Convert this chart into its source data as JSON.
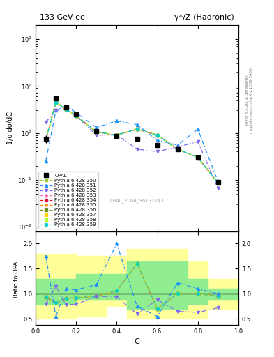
{
  "title_left": "133 GeV ee",
  "title_right": "γ*/Z (Hadronic)",
  "ylabel_main": "1/σ dσ/dC",
  "ylabel_ratio": "Ratio to OPAL",
  "xlabel": "C",
  "watermark": "OPAL_2004_S6132243",
  "right_label": "Rivet 3.1.10, ≥ 3M events",
  "right_label2": "mcplots.cern.ch [arXiv:1306.3436]",
  "opal_x": [
    0.05,
    0.1,
    0.15,
    0.2,
    0.3,
    0.4,
    0.5,
    0.6,
    0.7,
    0.8,
    0.9
  ],
  "opal_y": [
    0.75,
    5.5,
    3.5,
    2.5,
    1.1,
    0.85,
    0.75,
    0.55,
    0.45,
    0.3,
    0.09
  ],
  "opal_yerr": [
    0.15,
    0.5,
    0.3,
    0.2,
    0.1,
    0.08,
    0.07,
    0.05,
    0.05,
    0.03,
    0.01
  ],
  "mc_x": [
    0.05,
    0.1,
    0.15,
    0.2,
    0.3,
    0.4,
    0.5,
    0.6,
    0.7,
    0.8,
    0.9
  ],
  "p350_y": [
    0.7,
    4.5,
    3.2,
    2.3,
    1.05,
    0.9,
    1.2,
    0.9,
    0.45,
    0.3,
    0.085
  ],
  "p351_y": [
    0.25,
    3.0,
    3.8,
    2.7,
    1.3,
    1.8,
    1.5,
    0.7,
    0.55,
    1.2,
    0.09
  ],
  "p352_y": [
    1.7,
    3.0,
    3.2,
    2.3,
    0.9,
    0.9,
    0.45,
    0.4,
    0.5,
    0.65,
    0.065
  ],
  "p353_y": [
    0.7,
    4.5,
    3.2,
    2.3,
    1.05,
    0.9,
    1.2,
    0.9,
    0.45,
    0.3,
    0.085
  ],
  "p354_y": [
    0.7,
    4.5,
    3.2,
    2.3,
    1.05,
    0.9,
    1.2,
    0.9,
    0.45,
    0.3,
    0.085
  ],
  "p355_y": [
    0.7,
    4.5,
    3.2,
    2.3,
    1.05,
    0.9,
    1.2,
    0.9,
    0.45,
    0.3,
    0.085
  ],
  "p356_y": [
    0.7,
    4.5,
    3.2,
    2.3,
    1.05,
    0.9,
    1.2,
    0.9,
    0.45,
    0.3,
    0.085
  ],
  "p357_y": [
    0.7,
    4.5,
    3.2,
    2.3,
    1.05,
    0.9,
    1.2,
    0.9,
    0.45,
    0.3,
    0.085
  ],
  "p358_y": [
    0.7,
    4.5,
    3.2,
    2.3,
    1.05,
    0.9,
    1.2,
    0.9,
    0.45,
    0.3,
    0.085
  ],
  "p359_y": [
    0.7,
    4.5,
    3.2,
    2.3,
    1.05,
    0.9,
    1.2,
    0.9,
    0.45,
    0.3,
    0.085
  ],
  "band_x": [
    0.0,
    0.1,
    0.2,
    0.35,
    0.45,
    0.55,
    0.75,
    0.85,
    1.0
  ],
  "band_green_lo": [
    0.8,
    0.8,
    0.9,
    0.9,
    0.7,
    0.7,
    0.8,
    0.9,
    0.9
  ],
  "band_green_hi": [
    1.3,
    1.3,
    1.4,
    1.4,
    1.65,
    1.65,
    1.3,
    1.1,
    1.1
  ],
  "band_yellow_lo": [
    0.5,
    0.5,
    0.55,
    0.75,
    0.5,
    0.5,
    0.5,
    0.7,
    0.7
  ],
  "band_yellow_hi": [
    1.8,
    1.8,
    1.75,
    1.75,
    1.9,
    1.9,
    1.65,
    1.3,
    1.3
  ],
  "ratio_x": [
    0.05,
    0.1,
    0.15,
    0.2,
    0.3,
    0.4,
    0.5,
    0.6,
    0.7,
    0.8,
    0.9
  ],
  "ratio_350": [
    0.93,
    0.82,
    0.91,
    0.92,
    0.95,
    1.06,
    1.6,
    0.7,
    1.0,
    1.0,
    0.95
  ],
  "ratio_351": [
    1.75,
    0.55,
    1.1,
    1.08,
    1.18,
    2.0,
    0.75,
    0.55,
    1.22,
    1.1,
    1.0
  ],
  "ratio_352": [
    0.8,
    1.15,
    0.78,
    0.79,
    0.95,
    0.94,
    0.6,
    0.88,
    0.65,
    0.63,
    0.72
  ],
  "color_350": "#9acd32",
  "color_351": "#1e90ff",
  "color_352": "#7b68ee",
  "color_353": "#ff69b4",
  "color_354": "#dc143c",
  "color_355": "#ff8c00",
  "color_356": "#6b8e23",
  "color_357": "#ffd700",
  "color_358": "#adff2f",
  "color_359": "#00ced1",
  "ylim_main": [
    0.008,
    200
  ],
  "ylim_ratio": [
    0.38,
    2.25
  ],
  "xlim": [
    0.0,
    1.0
  ]
}
